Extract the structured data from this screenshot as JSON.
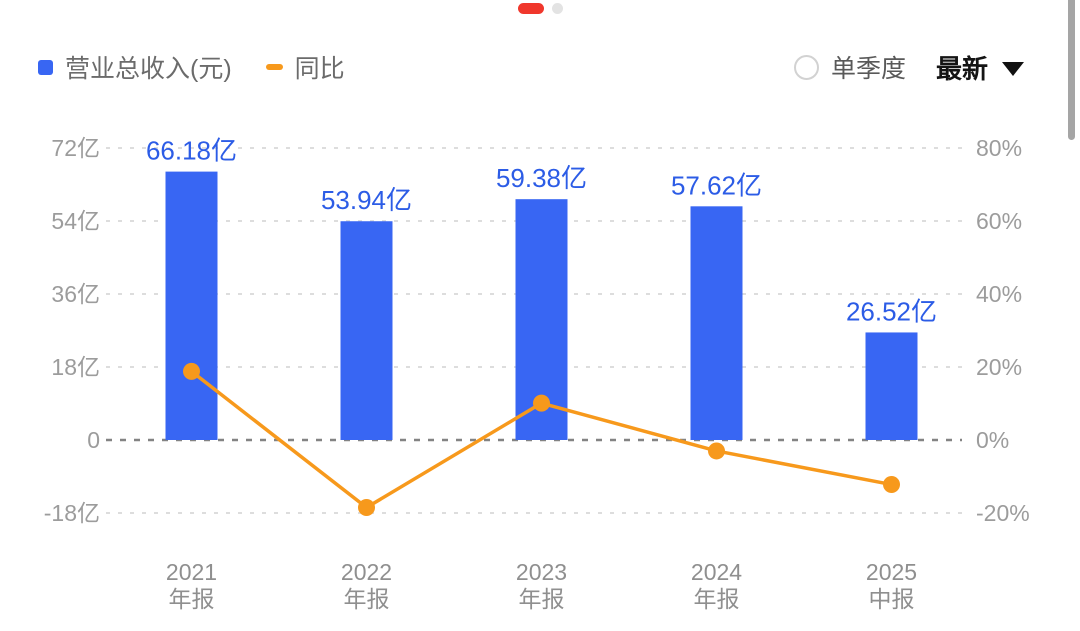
{
  "pager": {
    "active_index": 0,
    "dot_count": 2
  },
  "legend": {
    "revenue_label": "营业总收入(元)",
    "yoy_label": "同比"
  },
  "controls": {
    "single_quarter_label": "单季度",
    "latest_label": "最新"
  },
  "colors": {
    "bar": "#3866f3",
    "bar_value_label": "#2c5ce6",
    "line": "#f7991c",
    "axis_label": "#9c9c9c",
    "x_label": "#8f8f8f",
    "grid_light": "#dddddd",
    "grid_zero": "#838383",
    "pager_active": "#f0372c",
    "pager_inactive": "#e3e3e3"
  },
  "chart_data": {
    "type": "bar",
    "subtype": "bar-line-combo",
    "categories": [
      {
        "year": "2021",
        "period": "年报"
      },
      {
        "year": "2022",
        "period": "年报"
      },
      {
        "year": "2023",
        "period": "年报"
      },
      {
        "year": "2024",
        "period": "年报"
      },
      {
        "year": "2025",
        "period": "中报"
      }
    ],
    "series": [
      {
        "name": "营业总收入(元)",
        "type": "bar",
        "axis": "left",
        "unit": "亿",
        "values": [
          66.18,
          53.94,
          59.38,
          57.62,
          26.52
        ],
        "labels": [
          "66.18亿",
          "53.94亿",
          "59.38亿",
          "57.62亿",
          "26.52亿"
        ]
      },
      {
        "name": "同比",
        "type": "line",
        "axis": "right",
        "unit": "%",
        "values": [
          18.8,
          -18.5,
          10.1,
          -3.0,
          -12.2
        ]
      }
    ],
    "left_axis": {
      "tick_values": [
        72,
        54,
        36,
        18,
        0,
        -18
      ],
      "tick_labels": [
        "72亿",
        "54亿",
        "36亿",
        "18亿",
        "0",
        "-18亿"
      ],
      "range": [
        -18,
        72
      ]
    },
    "right_axis": {
      "tick_values": [
        80,
        60,
        40,
        20,
        0,
        -20
      ],
      "tick_labels": [
        "80%",
        "60%",
        "40%",
        "20%",
        "0%",
        "-20%"
      ],
      "range": [
        -20,
        80
      ]
    },
    "grid": "dashed-horizontal",
    "legend_position": "top-left"
  }
}
